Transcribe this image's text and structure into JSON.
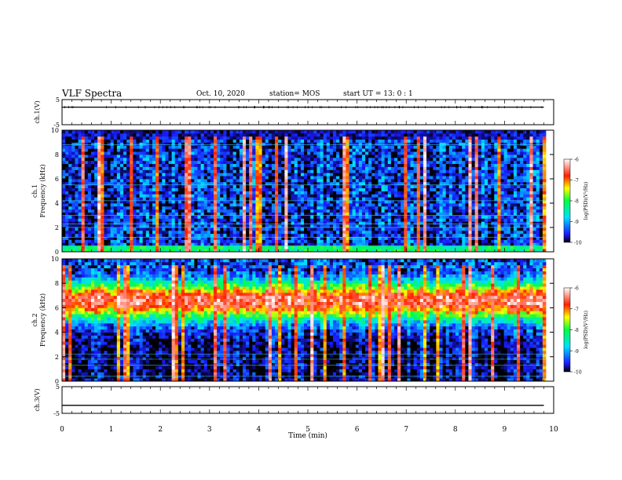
{
  "header": {
    "title": "VLF Spectra",
    "date": "Oct. 10, 2020",
    "station": "station= MOS",
    "start": "start  UT =  13: 0  : 1"
  },
  "chart_data": [
    {
      "type": "line",
      "panel": "ch1-waveform",
      "ylabel": "ch.1(V)",
      "yticks": [
        "5",
        "-5"
      ],
      "ylim": [
        -5,
        5
      ],
      "series": [
        {
          "values": [
            2,
            2
          ]
        }
      ],
      "x": [
        0,
        9.8
      ]
    },
    {
      "type": "heatmap",
      "panel": "ch1-spectrogram",
      "ylabel_top": "ch.1",
      "ylabel": "Frequency (kHz)",
      "yticks": [
        "0",
        "2",
        "4",
        "6",
        "8",
        "10"
      ],
      "ylim": [
        0,
        10
      ],
      "xlim": [
        0,
        9.8
      ],
      "colorbar": {
        "label": "log(PSD)(V²/Hz)",
        "ticks": [
          "-6",
          "-7",
          "-8",
          "-9",
          "-10"
        ],
        "range": [
          -10,
          -6
        ]
      },
      "description": "Mostly low-level background (log PSD ≈ -9 to -10) with frequent vertical broadband impulses (sferics) reaching -6 to -7 across 0–10 kHz; dark band above ~9.3 kHz"
    },
    {
      "type": "heatmap",
      "panel": "ch2-spectrogram",
      "ylabel_top": "ch.2",
      "ylabel": "Frequency (kHz)",
      "yticks": [
        "0",
        "2",
        "4",
        "6",
        "8",
        "10"
      ],
      "ylim": [
        0,
        10
      ],
      "xlim": [
        0,
        9.8
      ],
      "colorbar": {
        "label": "log(PSD)(V²/Hz)",
        "ticks": [
          "-6",
          "-7",
          "-8",
          "-9",
          "-10"
        ],
        "range": [
          -10,
          -6
        ]
      },
      "description": "Persistent intense band centred near 6–7 kHz (log PSD ≈ -6 to -7) spanning ~4–9 kHz, with vertical broadband impulses throughout"
    },
    {
      "type": "line",
      "panel": "ch3-waveform",
      "ylabel": "ch.3(V)",
      "yticks": [
        "5",
        "-5"
      ],
      "ylim": [
        -5,
        5
      ],
      "series": [
        {
          "values": [
            -2,
            -2
          ]
        }
      ],
      "x": [
        0,
        9.8
      ]
    }
  ],
  "xaxis": {
    "label": "Time (min)",
    "ticks": [
      "0",
      "1",
      "2",
      "3",
      "4",
      "5",
      "6",
      "7",
      "8",
      "9",
      "10"
    ],
    "xlim": [
      0,
      10
    ]
  }
}
